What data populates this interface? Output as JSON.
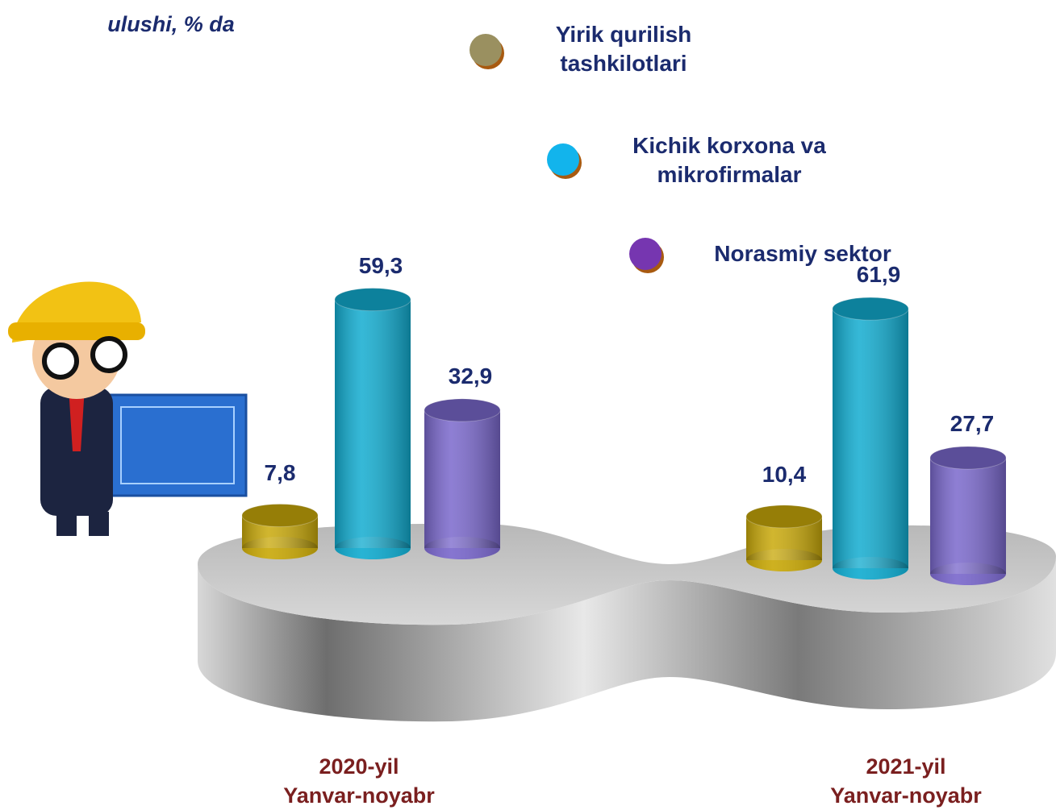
{
  "chart_data": {
    "type": "bar",
    "subtitle": "ulushi, % da",
    "categories": [
      "2020-yil\nYanvar-noyabr",
      "2021-yil\nYanvar-noyabr"
    ],
    "series": [
      {
        "name": "Yirik qurilish\ntashkilotlari",
        "color": "#c9a90a",
        "marker_color": "#9a9060",
        "values": [
          7.8,
          10.4
        ],
        "value_labels": [
          "7,8",
          "10,4"
        ]
      },
      {
        "name": "Kichik korxona va\nmikrofirmalar",
        "color": "#12acd0",
        "marker_color": "#12b4ec",
        "values": [
          59.3,
          61.9
        ],
        "value_labels": [
          "59,3",
          "61,9"
        ]
      },
      {
        "name": "Norasmiy sektor",
        "color": "#7a68cc",
        "marker_color": "#7636b0",
        "values": [
          32.9,
          27.7
        ],
        "value_labels": [
          "32,9",
          "27,7"
        ]
      }
    ]
  }
}
